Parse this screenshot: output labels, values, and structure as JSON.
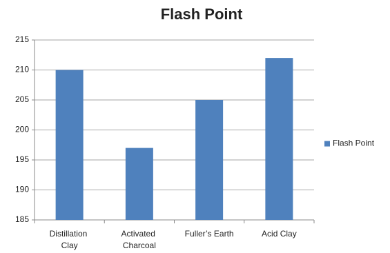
{
  "chart_data": {
    "type": "bar",
    "title": "Flash Point",
    "categories": [
      "Distillation Clay",
      "Activated Charcoal",
      "Fuller’s Earth",
      "Acid Clay"
    ],
    "series": [
      {
        "name": "Flash Point",
        "color": "#4f81bd",
        "values": [
          210,
          197,
          205,
          212
        ]
      }
    ],
    "ylim": [
      185,
      215
    ],
    "yticks": [
      185,
      190,
      195,
      200,
      205,
      210,
      215
    ],
    "grid": true,
    "legend": "right"
  }
}
